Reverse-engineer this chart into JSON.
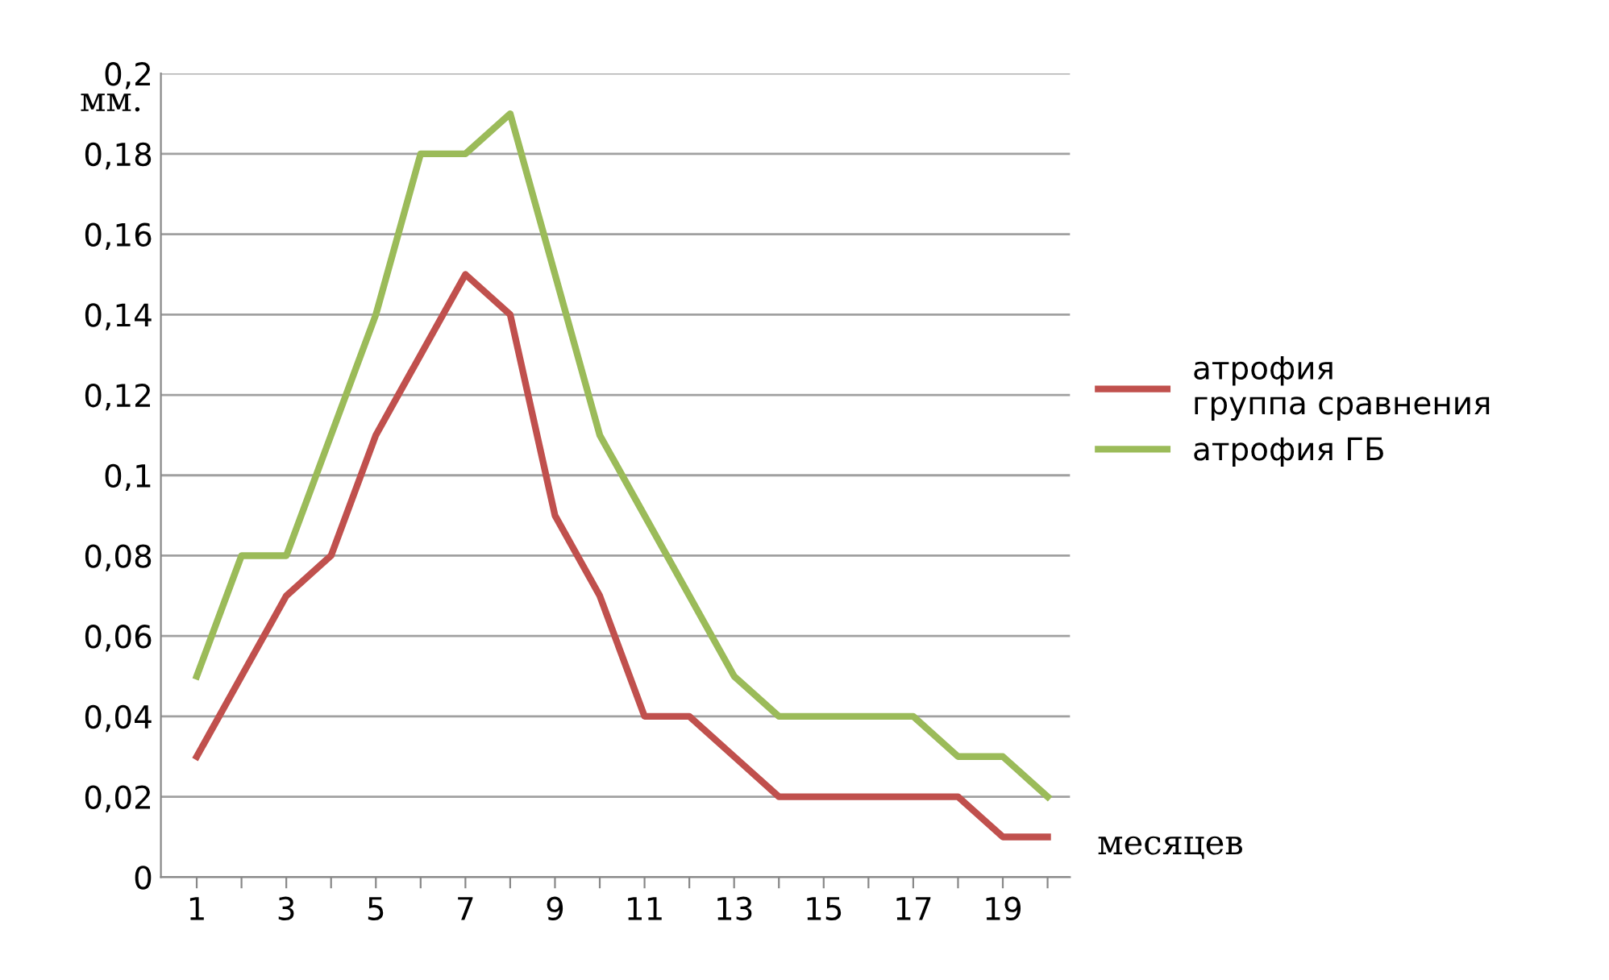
{
  "chart_data": {
    "type": "line",
    "ylabel": "мм.",
    "xlabel": "месяцев",
    "categories": [
      "1",
      null,
      "3",
      null,
      "5",
      null,
      "7",
      null,
      "9",
      null,
      "11",
      null,
      "13",
      null,
      "15",
      null,
      "17",
      null,
      "19",
      null
    ],
    "series": [
      {
        "name": "атрофия\nгруппа сравнения",
        "color": "#c0504d",
        "values": [
          0.03,
          0.05,
          0.07,
          0.08,
          0.11,
          0.13,
          0.15,
          0.14,
          0.09,
          0.07,
          0.04,
          0.04,
          0.03,
          0.02,
          0.02,
          0.02,
          0.02,
          0.02,
          0.01,
          0.01
        ]
      },
      {
        "name": "атрофия ГБ",
        "color": "#9bbb59",
        "values": [
          0.05,
          0.08,
          0.08,
          0.11,
          0.14,
          0.18,
          0.18,
          0.19,
          0.15,
          0.11,
          0.09,
          0.07,
          0.05,
          0.04,
          0.04,
          0.04,
          0.04,
          0.03,
          0.03,
          0.02
        ]
      }
    ],
    "ylim": [
      0,
      0.2
    ],
    "yticks": [
      {
        "value": 0,
        "label": "0"
      },
      {
        "value": 0.02,
        "label": "0,02"
      },
      {
        "value": 0.04,
        "label": "0,04"
      },
      {
        "value": 0.06,
        "label": "0,06"
      },
      {
        "value": 0.08,
        "label": "0,08"
      },
      {
        "value": 0.1,
        "label": "0,1"
      },
      {
        "value": 0.12,
        "label": "0,12"
      },
      {
        "value": 0.14,
        "label": "0,14"
      },
      {
        "value": 0.16,
        "label": "0,16"
      },
      {
        "value": 0.18,
        "label": "0,18"
      },
      {
        "value": 0.2,
        "label": "0,2"
      }
    ],
    "grid": "y",
    "legend": "right",
    "marker": "none",
    "line_style": "solid"
  }
}
